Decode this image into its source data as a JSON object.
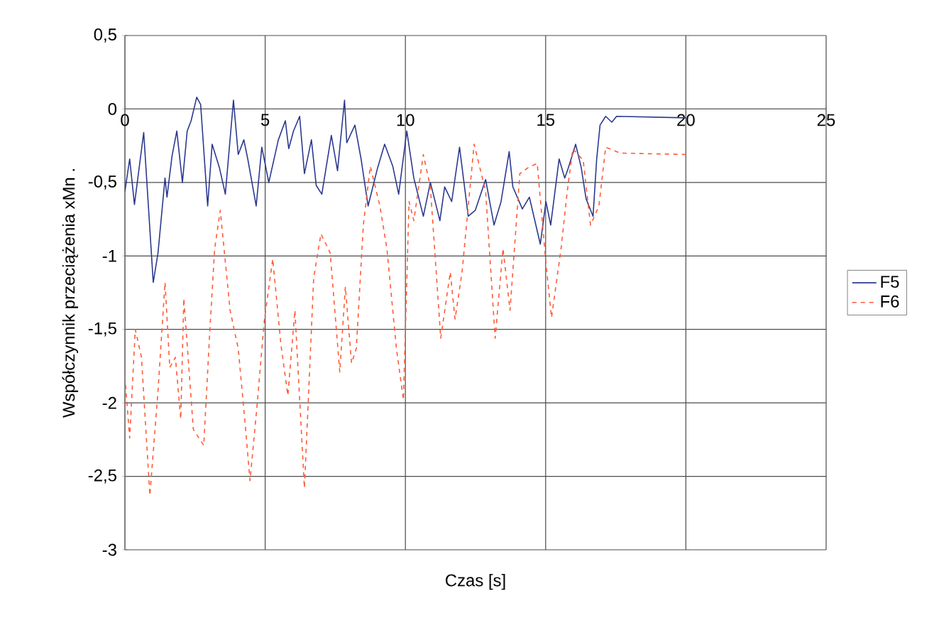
{
  "chart_data": {
    "type": "line",
    "xlabel": "Czas [s]",
    "ylabel": "Współczynnik przeciążenia xMn .",
    "xlim": [
      0,
      25
    ],
    "ylim": [
      -3,
      0.5
    ],
    "xticks": [
      0,
      5,
      10,
      15,
      20,
      25
    ],
    "yticks": [
      {
        "value": 0.5,
        "label": "0,5"
      },
      {
        "value": 0,
        "label": "0"
      },
      {
        "value": -0.5,
        "label": "-0,5"
      },
      {
        "value": -1,
        "label": "-1"
      },
      {
        "value": -1.5,
        "label": "-1,5"
      },
      {
        "value": -2,
        "label": "-2"
      },
      {
        "value": -2.5,
        "label": "-2,5"
      },
      {
        "value": -3,
        "label": "-3"
      }
    ],
    "grid": true,
    "legend": "right",
    "marker": "none",
    "series": [
      {
        "name": "F5",
        "color": "#2b3990",
        "line_style": "solid",
        "x": [
          0,
          0.17,
          0.34,
          0.67,
          1.01,
          1.18,
          1.43,
          1.5,
          1.68,
          1.85,
          2.05,
          2.22,
          2.36,
          2.56,
          2.7,
          2.95,
          3.11,
          3.37,
          3.58,
          3.87,
          4.04,
          4.24,
          4.38,
          4.68,
          4.88,
          5.13,
          5.47,
          5.72,
          5.84,
          6.01,
          6.23,
          6.4,
          6.65,
          6.82,
          7.02,
          7.36,
          7.58,
          7.83,
          7.91,
          8.2,
          8.42,
          8.67,
          9.01,
          9.26,
          9.55,
          9.76,
          10.05,
          10.3,
          10.64,
          10.89,
          11.23,
          11.4,
          11.65,
          11.93,
          12.24,
          12.49,
          12.86,
          13.16,
          13.41,
          13.7,
          13.83,
          14.17,
          14.42,
          14.81,
          15.01,
          15.18,
          15.48,
          15.68,
          15.81,
          16.07,
          16.27,
          16.44,
          16.69,
          16.82,
          16.94,
          17.14,
          17.36,
          17.53,
          20
        ],
        "values": [
          -0.56,
          -0.34,
          -0.65,
          -0.16,
          -1.18,
          -0.98,
          -0.47,
          -0.6,
          -0.32,
          -0.15,
          -0.5,
          -0.15,
          -0.08,
          0.08,
          0.03,
          -0.66,
          -0.24,
          -0.4,
          -0.58,
          0.06,
          -0.31,
          -0.21,
          -0.34,
          -0.66,
          -0.26,
          -0.5,
          -0.21,
          -0.08,
          -0.27,
          -0.15,
          -0.05,
          -0.44,
          -0.21,
          -0.52,
          -0.58,
          -0.18,
          -0.42,
          0.06,
          -0.23,
          -0.11,
          -0.34,
          -0.66,
          -0.4,
          -0.24,
          -0.39,
          -0.58,
          -0.15,
          -0.47,
          -0.73,
          -0.5,
          -0.76,
          -0.53,
          -0.63,
          -0.26,
          -0.73,
          -0.69,
          -0.48,
          -0.79,
          -0.63,
          -0.29,
          -0.53,
          -0.68,
          -0.6,
          -0.92,
          -0.63,
          -0.79,
          -0.34,
          -0.47,
          -0.4,
          -0.24,
          -0.4,
          -0.61,
          -0.73,
          -0.34,
          -0.11,
          -0.05,
          -0.09,
          -0.05,
          -0.06
        ]
      },
      {
        "name": "F6",
        "color": "#ff5a36",
        "line_style": "dashed",
        "x": [
          0,
          0.17,
          0.37,
          0.59,
          0.89,
          1.18,
          1.43,
          1.6,
          1.8,
          1.99,
          2.1,
          2.44,
          2.81,
          3.03,
          3.2,
          3.4,
          3.75,
          4.04,
          4.29,
          4.46,
          4.71,
          4.97,
          5.27,
          5.56,
          5.81,
          6.06,
          6.4,
          6.73,
          6.99,
          7.32,
          7.66,
          7.86,
          8.08,
          8.25,
          8.5,
          8.75,
          9.09,
          9.34,
          9.68,
          9.93,
          10.13,
          10.3,
          10.64,
          10.89,
          11.26,
          11.6,
          11.77,
          12.02,
          12.45,
          12.86,
          13.2,
          13.48,
          13.73,
          14.08,
          14.37,
          14.7,
          15.01,
          15.21,
          15.55,
          15.77,
          15.97,
          16.34,
          16.6,
          16.9,
          17.14,
          17.66,
          20
        ],
        "values": [
          -1.82,
          -2.24,
          -1.5,
          -1.69,
          -2.63,
          -1.92,
          -1.18,
          -1.76,
          -1.69,
          -2.11,
          -1.29,
          -2.18,
          -2.29,
          -1.5,
          -0.95,
          -0.69,
          -1.37,
          -1.63,
          -2.15,
          -2.53,
          -2.02,
          -1.44,
          -1.02,
          -1.6,
          -1.95,
          -1.37,
          -2.58,
          -1.15,
          -0.85,
          -0.98,
          -1.79,
          -1.21,
          -1.73,
          -1.63,
          -0.79,
          -0.39,
          -0.66,
          -0.95,
          -1.63,
          -1.98,
          -0.63,
          -0.76,
          -0.31,
          -0.53,
          -1.56,
          -1.11,
          -1.43,
          -1.11,
          -0.24,
          -0.56,
          -1.56,
          -0.95,
          -1.37,
          -0.44,
          -0.4,
          -0.37,
          -1.05,
          -1.42,
          -0.95,
          -0.56,
          -0.27,
          -0.35,
          -0.79,
          -0.66,
          -0.26,
          -0.3,
          -0.31
        ]
      }
    ]
  }
}
